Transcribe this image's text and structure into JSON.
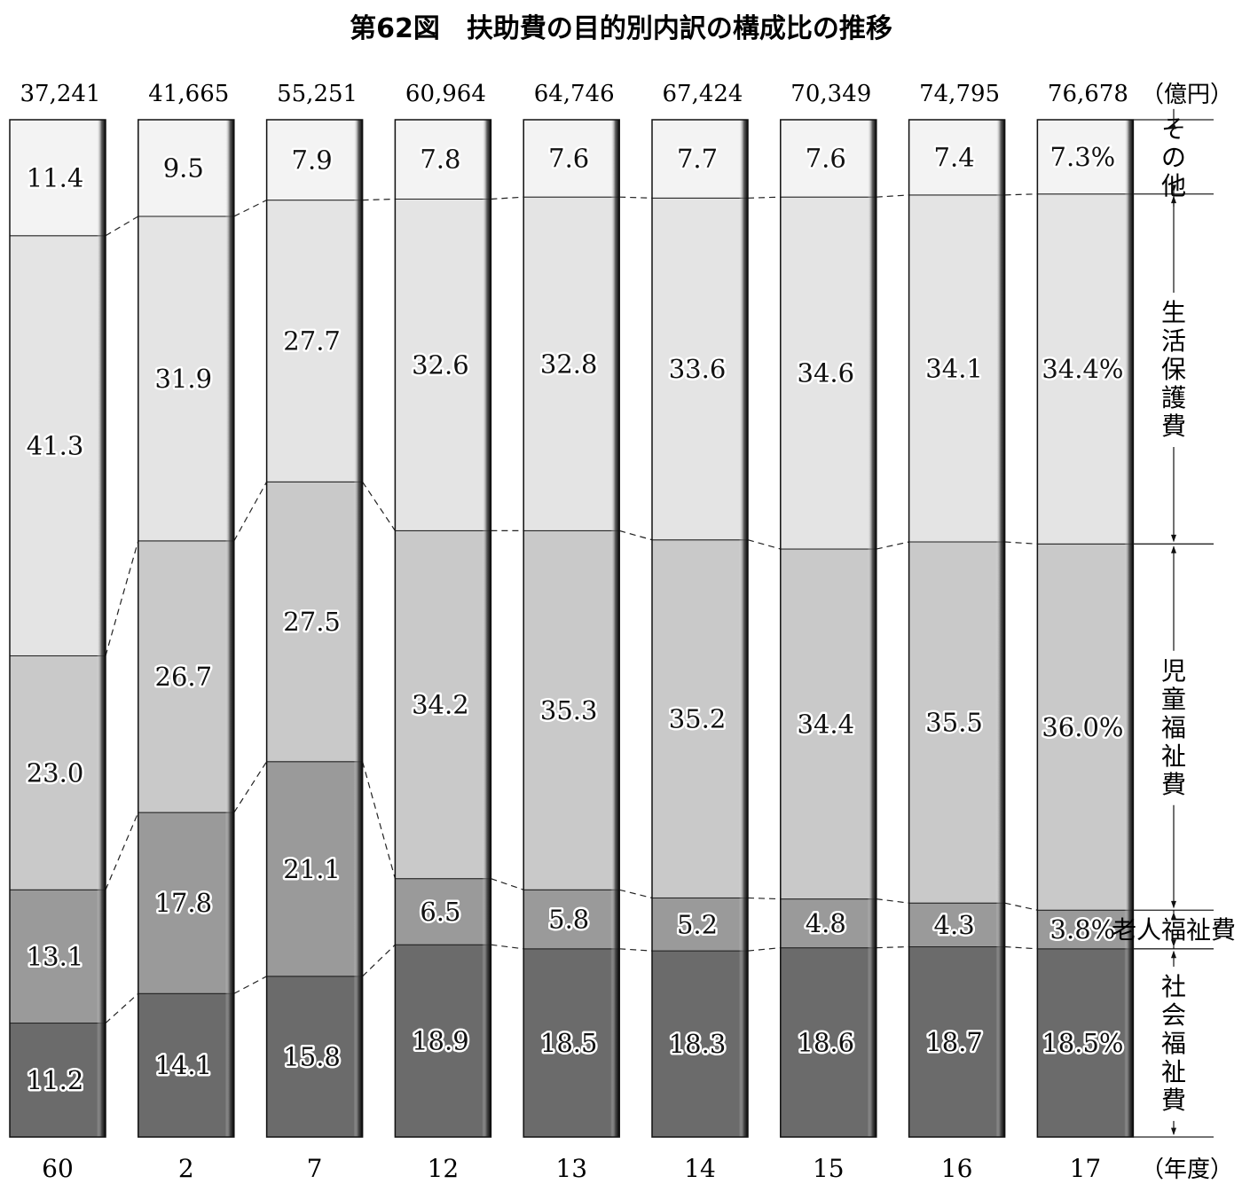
{
  "chart_data": {
    "type": "bar",
    "stacked": "percent",
    "title": "第62図　扶助費の目的別内訳の構成比の推移",
    "unit_total": "（億円）",
    "unit_x": "（年度）",
    "categories": [
      "60",
      "2",
      "7",
      "12",
      "13",
      "14",
      "15",
      "16",
      "17"
    ],
    "totals": [
      "37,241",
      "41,665",
      "55,251",
      "60,964",
      "64,746",
      "67,424",
      "70,349",
      "74,795",
      "76,678"
    ],
    "series": [
      {
        "name": "社会福祉費",
        "values": [
          11.2,
          14.1,
          15.8,
          18.9,
          18.5,
          18.3,
          18.6,
          18.7,
          18.5
        ],
        "color": "#6b6b6b"
      },
      {
        "name": "老人福祉費",
        "values": [
          13.1,
          17.8,
          21.1,
          6.5,
          5.8,
          5.2,
          4.8,
          4.3,
          3.8
        ],
        "color": "#9a9a9a"
      },
      {
        "name": "児童福祉費",
        "values": [
          23.0,
          26.7,
          27.5,
          34.2,
          35.3,
          35.2,
          34.4,
          35.5,
          36.0
        ],
        "color": "#c9c9c9"
      },
      {
        "name": "生活保護費",
        "values": [
          41.3,
          31.9,
          27.7,
          32.6,
          32.8,
          33.6,
          34.6,
          34.1,
          34.4
        ],
        "color": "#e4e4e4"
      },
      {
        "name": "その他",
        "values": [
          11.4,
          9.5,
          7.9,
          7.8,
          7.6,
          7.7,
          7.6,
          7.4,
          7.3
        ],
        "color": "#f3f3f3"
      }
    ],
    "last_bar_labels": [
      "18.5%",
      "3.8%",
      "36.0%",
      "34.4%",
      "7.3%"
    ],
    "ylim": [
      0,
      100
    ],
    "legend_position": "right"
  }
}
